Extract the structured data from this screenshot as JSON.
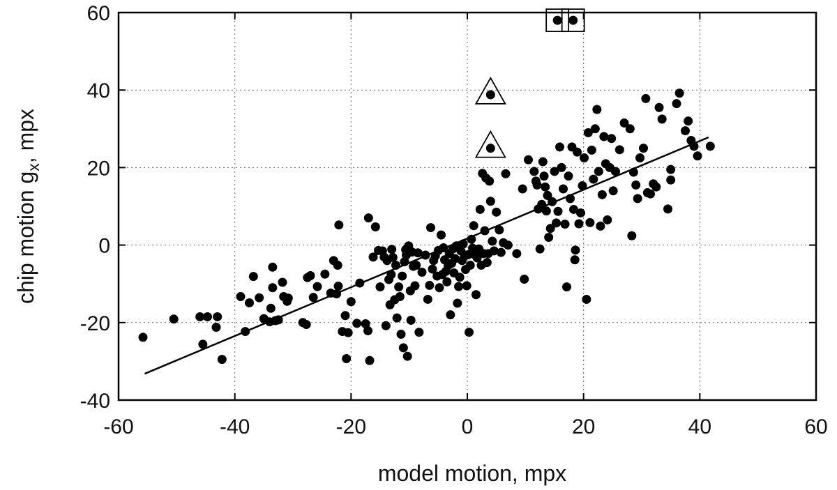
{
  "chart_data": {
    "type": "scatter",
    "xlabel": "model motion, mpx",
    "ylabel": {
      "prefix": "chip motion g",
      "subscript": "x",
      "suffix": ", mpx"
    },
    "xlim": [
      -60,
      60
    ],
    "ylim": [
      -40,
      60
    ],
    "xticks": [
      -60,
      -40,
      -20,
      0,
      20,
      40,
      60
    ],
    "yticks": [
      -40,
      -20,
      0,
      20,
      40,
      60
    ],
    "grid": true,
    "colors": {
      "points": "#000000",
      "line": "#000000",
      "grid": "#666666"
    },
    "fit_line": {
      "x": [
        -55.5,
        41.5
      ],
      "y": [
        -33.2,
        27.8
      ]
    },
    "highlighted": [
      {
        "marker": "square",
        "x": 15.5,
        "y": 58
      },
      {
        "marker": "square",
        "x": 18.2,
        "y": 58
      },
      {
        "marker": "triangle",
        "x": 4.0,
        "y": 38.8
      },
      {
        "marker": "triangle",
        "x": 4.0,
        "y": 25.0
      }
    ],
    "points": [
      [
        -55.8,
        -23.8
      ],
      [
        -50.5,
        -19.1
      ],
      [
        -46,
        -18.5
      ],
      [
        -45.5,
        -25.6
      ],
      [
        -44.7,
        -18.5
      ],
      [
        -43.2,
        -21.2
      ],
      [
        -43,
        -18.5
      ],
      [
        -42.2,
        -29.5
      ],
      [
        -39,
        -13.3
      ],
      [
        -38.2,
        -22.3
      ],
      [
        -37.5,
        -14.9
      ],
      [
        -36.8,
        -8.1
      ],
      [
        -35.8,
        -13.6
      ],
      [
        -35,
        -19
      ],
      [
        -34,
        -19.8
      ],
      [
        -33.8,
        -16.3
      ],
      [
        -33.5,
        -11
      ],
      [
        -33.5,
        -5.7
      ],
      [
        -33,
        -19.5
      ],
      [
        -32.5,
        -19.3
      ],
      [
        -31.8,
        -9.6
      ],
      [
        -31.6,
        -13.3
      ],
      [
        -31,
        -14.5
      ],
      [
        -30.8,
        -13.7
      ],
      [
        -28.3,
        -20
      ],
      [
        -27.7,
        -20.5
      ],
      [
        -27.5,
        -8.4
      ],
      [
        -27,
        -7.9
      ],
      [
        -26.5,
        -13.5
      ],
      [
        -25.8,
        -10.7
      ],
      [
        -24.5,
        -7.5
      ],
      [
        -23.5,
        -12.4
      ],
      [
        -23,
        -4
      ],
      [
        -22.5,
        -12.6
      ],
      [
        -22.3,
        -5.2
      ],
      [
        -22.2,
        -10.6
      ],
      [
        -22.1,
        5.2
      ],
      [
        -21.5,
        -22.3
      ],
      [
        -21,
        -18.2
      ],
      [
        -20.8,
        -29.3
      ],
      [
        -20.5,
        -22.6
      ],
      [
        -20,
        -14.6
      ],
      [
        -19,
        -20.2
      ],
      [
        -18.5,
        -9.8
      ],
      [
        -17.5,
        -20.3
      ],
      [
        -17.1,
        -22.1
      ],
      [
        -17,
        7
      ],
      [
        -16.8,
        -29.8
      ],
      [
        -16.2,
        -3.1
      ],
      [
        -15.8,
        4.7
      ],
      [
        -15.3,
        -1.4
      ],
      [
        -15,
        -10.8
      ],
      [
        -14.6,
        -1.5
      ],
      [
        -14.3,
        -3.1
      ],
      [
        -14,
        -20.8
      ],
      [
        -13.8,
        -4
      ],
      [
        -13.5,
        -8.9
      ],
      [
        -13.3,
        -15.4
      ],
      [
        -13.1,
        -7.6
      ],
      [
        -13,
        -1.1
      ],
      [
        -12.8,
        -3.2
      ],
      [
        -12.5,
        -14.1
      ],
      [
        -12.3,
        -5.2
      ],
      [
        -12.1,
        -18.8
      ],
      [
        -11.8,
        -10.8
      ],
      [
        -11.6,
        -13.3
      ],
      [
        -11.4,
        -23
      ],
      [
        -11.2,
        -8
      ],
      [
        -11,
        -26.5
      ],
      [
        -10.8,
        -4.3
      ],
      [
        -10.6,
        -1.2
      ],
      [
        -10.5,
        -2.6
      ],
      [
        -10.3,
        -28.7
      ],
      [
        -10.1,
        -0.2
      ],
      [
        -9.8,
        -11.8
      ],
      [
        -9.7,
        -19.4
      ],
      [
        -9.5,
        -1.8
      ],
      [
        -9.3,
        -5.5
      ],
      [
        -9,
        -10.5
      ],
      [
        -8.8,
        -5.2
      ],
      [
        -8.5,
        -2
      ],
      [
        -8.3,
        -22.5
      ],
      [
        -7.8,
        -7
      ],
      [
        -7.2,
        -2.6
      ],
      [
        -6.8,
        -14
      ],
      [
        -6.5,
        -10.4
      ],
      [
        -6.3,
        4.5
      ],
      [
        -6,
        -6.2
      ],
      [
        -5.8,
        -4
      ],
      [
        -5.5,
        -2.8
      ],
      [
        -5.2,
        -8
      ],
      [
        -5,
        -1.4
      ],
      [
        -4.8,
        -11
      ],
      [
        -4.5,
        2.6
      ],
      [
        -4.3,
        -7.6
      ],
      [
        -4.1,
        -0.7
      ],
      [
        -3.9,
        -3.8
      ],
      [
        -3.7,
        -6.8
      ],
      [
        -3.5,
        -9.5
      ],
      [
        -3.3,
        -5.3
      ],
      [
        -3.1,
        -2.2
      ],
      [
        -2.9,
        -18
      ],
      [
        -2.7,
        -4.7
      ],
      [
        -2.5,
        -1
      ],
      [
        -2.3,
        -7.2
      ],
      [
        -2.1,
        -3.5
      ],
      [
        -1.9,
        -0.2
      ],
      [
        -1.7,
        -15
      ],
      [
        -1.5,
        -10.7
      ],
      [
        -1.3,
        -8.3
      ],
      [
        -1.1,
        -1.5
      ],
      [
        -0.9,
        -4
      ],
      [
        -0.7,
        0.3
      ],
      [
        -0.5,
        -2.8
      ],
      [
        -0.3,
        -6.3
      ],
      [
        -0.1,
        -10.5
      ],
      [
        0.1,
        -2.5
      ],
      [
        0.3,
        -22.5
      ],
      [
        0.5,
        -5.2
      ],
      [
        0.7,
        1.5
      ],
      [
        0.9,
        -0.8
      ],
      [
        1.1,
        5
      ],
      [
        1.3,
        -2.5
      ],
      [
        1.5,
        -12.8
      ],
      [
        1.7,
        -3.3
      ],
      [
        2,
        -1
      ],
      [
        2.2,
        9.2
      ],
      [
        2.4,
        -5.2
      ],
      [
        2.6,
        18.5
      ],
      [
        2.8,
        -2.2
      ],
      [
        3,
        3.7
      ],
      [
        3.2,
        17.3
      ],
      [
        3.4,
        -4.5
      ],
      [
        3.6,
        -2.2
      ],
      [
        3.8,
        16.5
      ],
      [
        4,
        11.3
      ],
      [
        4.3,
        1
      ],
      [
        4.6,
        -1.5
      ],
      [
        5,
        8.5
      ],
      [
        5.5,
        3.9
      ],
      [
        5.8,
        -1.9
      ],
      [
        6.2,
        0.6
      ],
      [
        6.6,
        18.4
      ],
      [
        7,
        0
      ],
      [
        8.5,
        -2.2
      ],
      [
        9.5,
        14.5
      ],
      [
        9.8,
        -8.8
      ],
      [
        10.5,
        22
      ],
      [
        11.5,
        19
      ],
      [
        11.8,
        16.5
      ],
      [
        12,
        15.5
      ],
      [
        12.2,
        9.3
      ],
      [
        12.5,
        -1
      ],
      [
        12.8,
        10.5
      ],
      [
        13,
        21.5
      ],
      [
        13.2,
        17.8
      ],
      [
        13.4,
        15
      ],
      [
        13.6,
        8.8
      ],
      [
        13.8,
        12.8
      ],
      [
        14,
        2
      ],
      [
        14.3,
        4.3
      ],
      [
        14.6,
        11.2
      ],
      [
        15,
        19
      ],
      [
        15.3,
        5.7
      ],
      [
        15.6,
        8.7
      ],
      [
        15.9,
        25.3
      ],
      [
        16.2,
        20
      ],
      [
        16.5,
        14.5
      ],
      [
        16.8,
        5.4
      ],
      [
        17.1,
        -10.8
      ],
      [
        17.4,
        17.8
      ],
      [
        17.7,
        12
      ],
      [
        18,
        25.3
      ],
      [
        18.3,
        9.2
      ],
      [
        18.5,
        -3.8
      ],
      [
        18.6,
        -1.3
      ],
      [
        18.9,
        24
      ],
      [
        19.2,
        5.5
      ],
      [
        19.5,
        8.3
      ],
      [
        19.8,
        15.3
      ],
      [
        20.1,
        22.5
      ],
      [
        20.5,
        -14
      ],
      [
        20.8,
        29
      ],
      [
        21.1,
        5.8
      ],
      [
        21.4,
        24.5
      ],
      [
        21.7,
        17
      ],
      [
        22,
        30
      ],
      [
        22.3,
        35
      ],
      [
        22.6,
        19
      ],
      [
        22.9,
        4.9
      ],
      [
        23.2,
        13
      ],
      [
        23.5,
        28
      ],
      [
        23.8,
        21
      ],
      [
        24.1,
        6.5
      ],
      [
        24.5,
        20
      ],
      [
        24.8,
        27.5
      ],
      [
        25.1,
        14
      ],
      [
        25.5,
        19
      ],
      [
        26.2,
        24.6
      ],
      [
        27,
        31.5
      ],
      [
        28,
        30
      ],
      [
        28.3,
        2.4
      ],
      [
        28.6,
        18.8
      ],
      [
        29,
        15.5
      ],
      [
        29.3,
        12
      ],
      [
        29.7,
        22.5
      ],
      [
        30.3,
        25
      ],
      [
        30.7,
        37.8
      ],
      [
        31,
        13.5
      ],
      [
        31.5,
        13.2
      ],
      [
        32,
        15.8
      ],
      [
        32.5,
        15
      ],
      [
        33,
        35.5
      ],
      [
        33.5,
        32.5
      ],
      [
        34.5,
        9.3
      ],
      [
        35,
        16.8
      ],
      [
        35,
        19.5
      ],
      [
        36,
        36.5
      ],
      [
        36.5,
        39.2
      ],
      [
        37.5,
        29.5
      ],
      [
        38,
        32
      ],
      [
        38.5,
        27
      ],
      [
        39,
        25.5
      ],
      [
        39.6,
        23
      ],
      [
        41.8,
        25.5
      ]
    ]
  }
}
